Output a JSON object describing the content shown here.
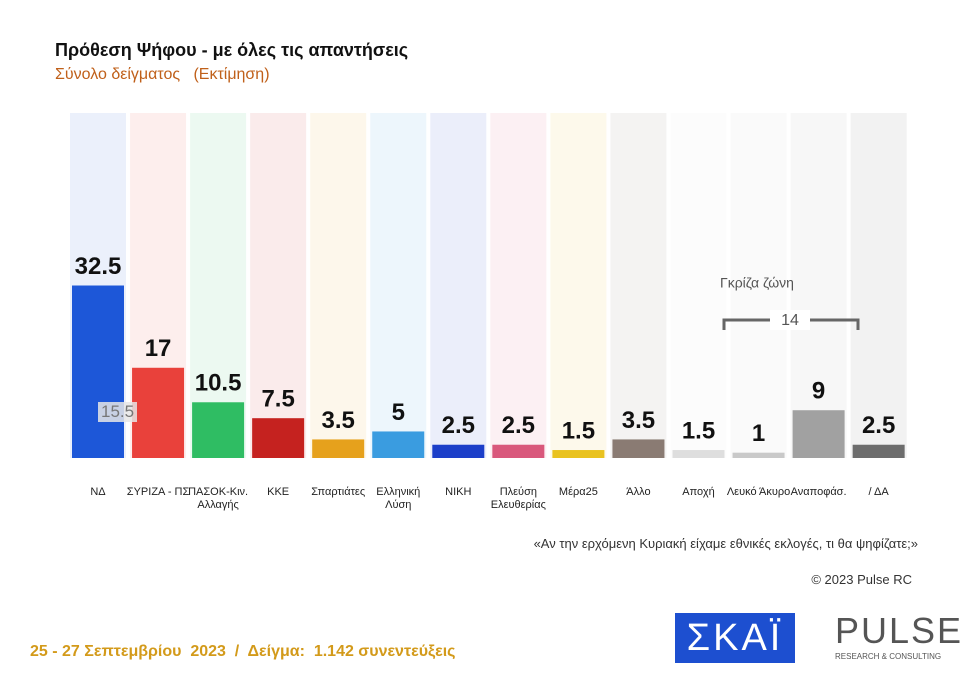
{
  "chart_data": {
    "type": "bar",
    "title": "Πρόθεση Ψήφου - με όλες τις απαντήσεις",
    "subtitle": "Σύνολο δείγματος   (Εκτίμηση)",
    "categories": [
      "ΝΔ",
      "ΣΥΡΙΖΑ - ΠΣ",
      "ΠΑΣΟΚ-Κιν. Αλλαγής",
      "ΚΚΕ",
      "Σπαρτιάτες",
      "Ελληνική Λύση",
      "ΝΙΚΗ",
      "Πλεύση Ελευθερίας",
      "Μέρα25",
      "Άλλο",
      "Αποχή",
      "Λευκό Άκυρο",
      "Αναποφάσ.",
      "/ ΔΑ"
    ],
    "values": [
      32.5,
      17,
      10.5,
      7.5,
      3.5,
      5,
      2.5,
      2.5,
      1.5,
      3.5,
      1.5,
      1,
      9,
      2.5
    ],
    "colors": [
      "#1d57d8",
      "#e9413b",
      "#2fbd63",
      "#c5221f",
      "#e6a11c",
      "#3a9ce0",
      "#1c3fc9",
      "#d9587c",
      "#e9c21f",
      "#8a7b73",
      "#dedede",
      "#c9c9c9",
      "#a1a1a1",
      "#6d6d6d"
    ],
    "ylim": [
      0,
      65
    ],
    "annotations": {
      "gap": "15.5",
      "grey_zone": "Γκρίζα ζώνη",
      "grey_zone_total": "14"
    },
    "question": "«Αν την ερχόμενη Κυριακή είχαμε εθνικές εκλογές, τι θα ψηφίζατε;»",
    "copyright": "© 2023 Pulse RC",
    "footer": "25 - 27 Σεπτεμβρίου  2023  /  Δείγμα:  1.142 συνεντεύξεις",
    "logos": {
      "channel": "ΣΚΑΪ",
      "brand": "PULSE",
      "brand_sub": "RESEARCH & CONSULTING"
    }
  }
}
